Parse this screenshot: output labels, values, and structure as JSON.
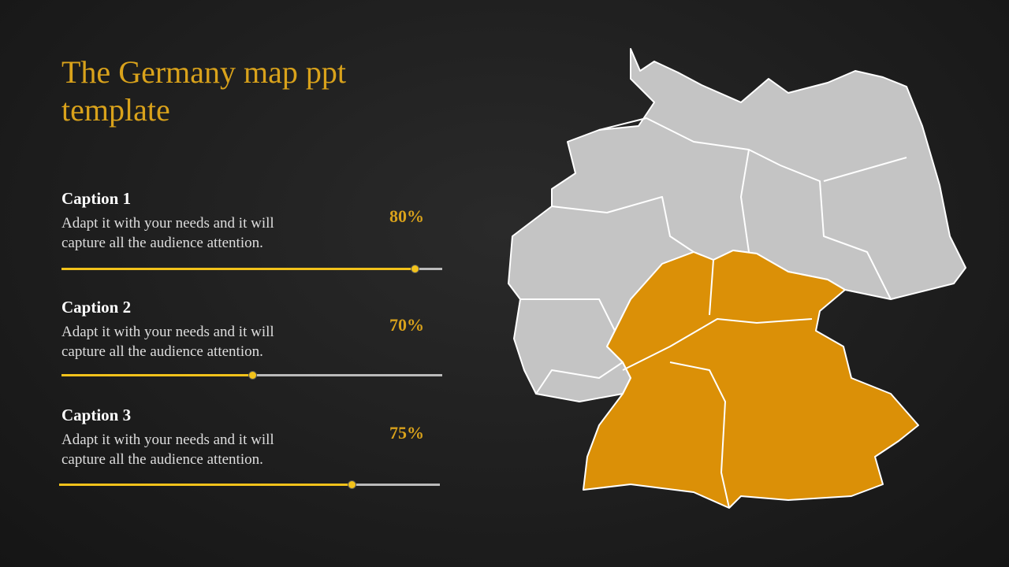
{
  "header": {
    "title": "The Germany map ppt template"
  },
  "captions": [
    {
      "title": "Caption 1",
      "text": "Adapt it with your needs and it will capture all the audience attention.",
      "value": "80%"
    },
    {
      "title": "Caption 2",
      "text": "Adapt it with your needs and it will capture all the audience attention.",
      "value": "70%"
    },
    {
      "title": "Caption 3",
      "text": "Adapt it with your needs and it will capture all the audience attention.",
      "value": "75%"
    }
  ]
}
